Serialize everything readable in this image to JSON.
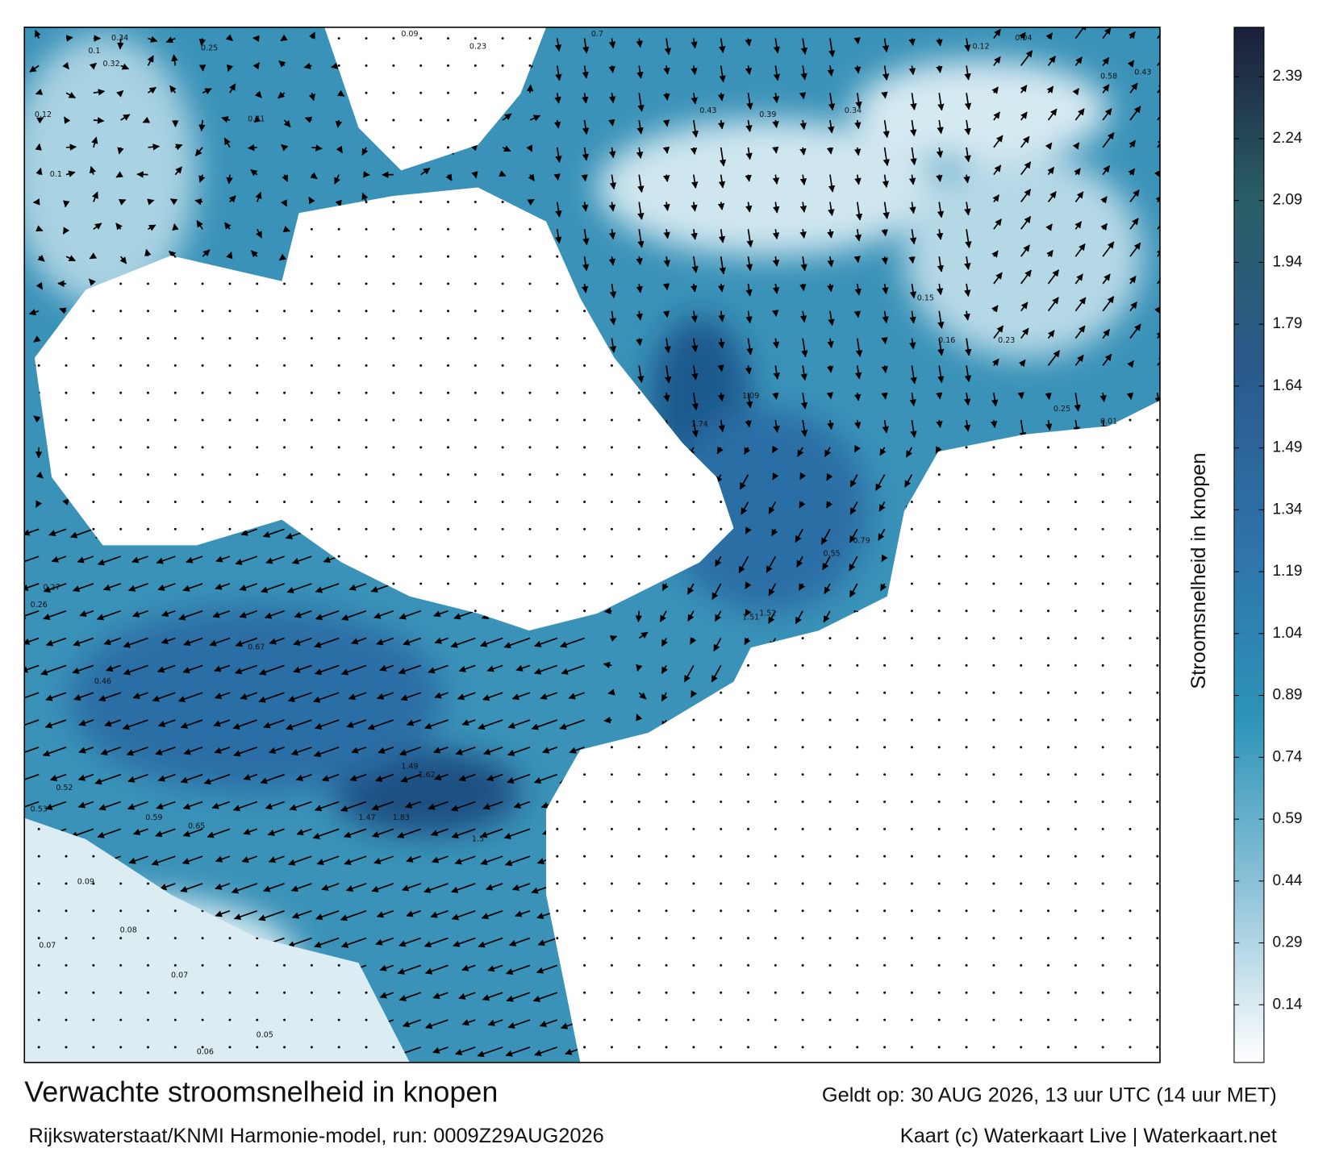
{
  "map": {
    "title": "Verwachte stroomsnelheid in knopen",
    "subtitle": "Rijkswaterstaat/KNMI Harmonie-model, run: 0009Z29AUG2026",
    "valid_time": "Geldt op: 30 AUG 2026, 13 uur UTC (14 uur MET)",
    "credit": "Kaart (c) Waterkaart Live | Waterkaart.net",
    "colorbar": {
      "label": "Stroomsnelheid in knopen",
      "range": [
        0,
        2.51
      ],
      "ticks": [
        0.14,
        0.29,
        0.44,
        0.59,
        0.74,
        0.89,
        1.04,
        1.19,
        1.34,
        1.49,
        1.64,
        1.79,
        1.94,
        2.09,
        2.24,
        2.39
      ],
      "colors": [
        "#ffffff",
        "#8fc3d8",
        "#2d93b8",
        "#2f72aa",
        "#2a5a8c",
        "#2a5e66",
        "#1b1f3a"
      ]
    },
    "speed_labels": [
      0.34,
      0.1,
      0.32,
      0.12,
      0.1,
      0.25,
      0.41,
      0.09,
      0.23,
      0.7,
      0.43,
      0.39,
      0.34,
      0.12,
      0.04,
      0.58,
      0.43,
      0.15,
      0.16,
      0.23,
      0.25,
      0.01,
      1.74,
      1.09,
      1.52,
      1.51,
      1.49,
      1.62,
      1.83,
      1.47,
      1.5,
      0.06,
      0.05,
      0.07,
      0.07,
      0.08,
      0.09,
      0.79,
      0.55,
      0.67,
      0.46,
      0.52,
      0.53,
      0.59,
      0.65,
      0.27,
      0.26
    ]
  }
}
